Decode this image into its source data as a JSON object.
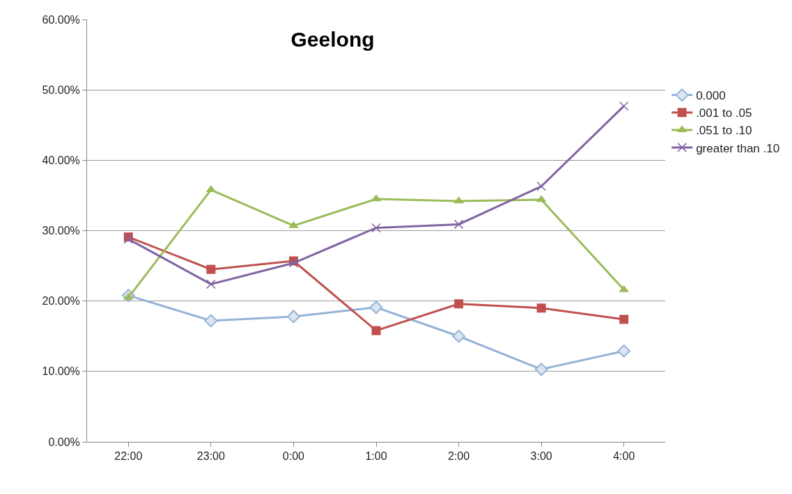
{
  "chart_data": {
    "type": "line",
    "title": "Geelong",
    "categories": [
      "22:00",
      "23:00",
      "0:00",
      "1:00",
      "2:00",
      "3:00",
      "4:00"
    ],
    "series": [
      {
        "name": "0.000",
        "color": "#95b3d7",
        "marker": "diamond",
        "values": [
          20.8,
          17.2,
          17.8,
          19.1,
          15.0,
          10.3,
          12.9
        ]
      },
      {
        "name": ".001 to .05",
        "color": "#c0504d",
        "marker": "square",
        "values": [
          29.1,
          24.5,
          25.7,
          15.8,
          19.6,
          19.0,
          17.4
        ]
      },
      {
        "name": ".051 to .10",
        "color": "#9bbb59",
        "marker": "triangle",
        "values": [
          20.5,
          35.8,
          30.7,
          34.5,
          34.2,
          34.4,
          21.6
        ]
      },
      {
        "name": "greater than .10",
        "color": "#8064a2",
        "marker": "cross",
        "values": [
          28.8,
          22.4,
          25.4,
          30.4,
          30.9,
          36.3,
          47.7
        ]
      }
    ],
    "ylim": [
      0,
      60
    ],
    "yticks": [
      {
        "value": 0,
        "label": "0.00%"
      },
      {
        "value": 10,
        "label": "10.00%"
      },
      {
        "value": 20,
        "label": "20.00%"
      },
      {
        "value": 30,
        "label": "30.00%"
      },
      {
        "value": 40,
        "label": "40.00%"
      },
      {
        "value": 50,
        "label": "50.00%"
      },
      {
        "value": 60,
        "label": "60.00%"
      }
    ],
    "grid": "y",
    "legend": "right",
    "line_style": "solid"
  }
}
